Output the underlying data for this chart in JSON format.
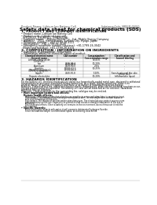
{
  "background_color": "#ffffff",
  "header_left": "Product Name: Lithium Ion Battery Cell",
  "header_right_line1": "Substance Code: SBP/LIB-00010",
  "header_right_line2": "Established / Revision: Dec.1.2019",
  "title": "Safety data sheet for chemical products (SDS)",
  "section1_title": "1. PRODUCT AND COMPANY IDENTIFICATION",
  "section1_lines": [
    "• Product name: Lithium Ion Battery Cell",
    "• Product code: Cylindrical-type cell",
    "  (IFR18650, IFR18650L, IFR18650A)",
    "• Company name:    Baisuo Electric Co., Ltd., Middle Energy Company",
    "• Address:    2021, Kaminakaran, Sumoto City, Hyogo, Japan",
    "• Telephone number:   +81-1799-26-4111",
    "• Fax number:   +81-1799-26-4120",
    "• Emergency telephone number (daytime): +81-1799-26-3042",
    "  (Night and holidays): +81-1799-26-4101"
  ],
  "section2_title": "2. COMPOSITION / INFORMATION ON INGREDIENTS",
  "section2_intro": "• Substance or preparation: Preparation",
  "section2_sub": "• Information about the chemical nature of product:",
  "table_headers": [
    "Chemical/chemical name",
    "CAS number",
    "Concentration /\nConcentration range",
    "Classification and\nhazard labeling"
  ],
  "table_header2": [
    "General name",
    "",
    "(30-45%)",
    ""
  ],
  "table_rows": [
    [
      "Lithium cobalt oxide\n(LiMnCoO₂)",
      "-",
      "30-45%",
      "-"
    ],
    [
      "Iron",
      "7439-89-6\n7439-89-6",
      "10-20%",
      "-"
    ],
    [
      "Aluminum",
      "7429-90-5",
      "2-6%",
      "-"
    ],
    [
      "Graphite\n(Hard or graphite+)\n(UM-90 or graphite+)",
      "17590-42-5\n17590-44-0",
      "10-25%",
      "-"
    ],
    [
      "Copper",
      "7440-50-8",
      "5-10%",
      "Sensitization of the skin\ngroup No.2"
    ],
    [
      "Organic electrolyte",
      "-",
      "10-20%",
      "Inflammable liquid"
    ]
  ],
  "section3_title": "3. HAZARDS IDENTIFICATION",
  "section3_lines": [
    "For the battery cell, chemical materials are stored in a hermetically sealed metal case, designed to withstand",
    "temperatures or pressures-associated during normal use. As a result, during normal use, there is no",
    "physical danger of ignition or explosion and there is no danger of hazardous materials leakage.",
    "However, if exposed to a fire, added mechanical shocks, decomposed, when electro-chemical reactions occur,",
    "the gas maybe cannot be operated. The battery cell case will be breached at the extreme. Hazardous",
    "materials may be released.",
    "Moreover, if heated strongly by the surrounding fire, solid gas may be emitted."
  ],
  "section3_bullet1": "• Most important hazard and effects:",
  "section3_human": "Human health effects:",
  "section3_effects": [
    "Inhalation: The release of the electrolyte has an anesthesia action and stimulates to respiratory tract.",
    "Skin contact: The release of the electrolyte stimulates a skin. The electrolyte skin contact causes a",
    "sore and stimulation on the skin.",
    "Eye contact: The release of the electrolyte stimulates eyes. The electrolyte eye contact causes a sore",
    "and stimulation on the eye. Especially, a substance that causes a strong inflammation of the eye is",
    "contained.",
    "Environmental effects: Since a battery cell remains in the environment, do not throw out it into the",
    "environment."
  ],
  "section3_bullet2": "• Specific hazards:",
  "section3_specific": [
    "If the electrolyte contacts with water, it will generate detrimental hydrogen fluoride.",
    "Since the lead electrolyte is inflammable liquid, do not bring close to fire."
  ],
  "footer_line": true
}
